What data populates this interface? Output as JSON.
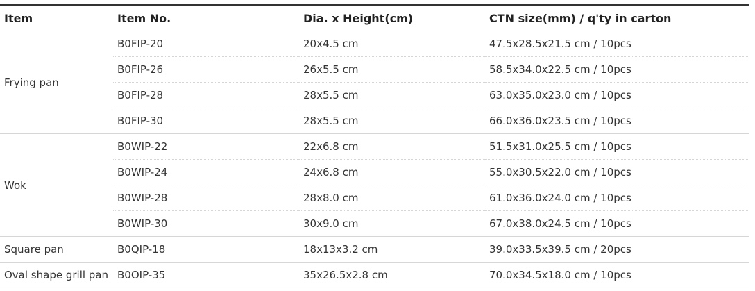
{
  "table": {
    "headers": [
      "Item",
      "Item No.",
      "Dia. x Height(cm)",
      "CTN size(mm) / q'ty in carton"
    ],
    "groups": [
      {
        "item": "Frying pan",
        "rows": [
          [
            "B0FIP-20",
            "20x4.5 cm",
            "47.5x28.5x21.5 cm / 10pcs"
          ],
          [
            "B0FIP-26",
            "26x5.5 cm",
            "58.5x34.0x22.5 cm / 10pcs"
          ],
          [
            "B0FIP-28",
            "28x5.5 cm",
            "63.0x35.0x23.0 cm / 10pcs"
          ],
          [
            "B0FIP-30",
            "28x5.5 cm",
            "66.0x36.0x23.5 cm / 10pcs"
          ]
        ]
      },
      {
        "item": "Wok",
        "rows": [
          [
            "B0WIP-22",
            "22x6.8 cm",
            "51.5x31.0x25.5 cm / 10pcs"
          ],
          [
            "B0WIP-24",
            "24x6.8 cm",
            "55.0x30.5x22.0 cm / 10pcs"
          ],
          [
            "B0WIP-28",
            "28x8.0 cm",
            "61.0x36.0x24.0 cm / 10pcs"
          ],
          [
            "B0WIP-30",
            "30x9.0 cm",
            "67.0x38.0x24.5 cm / 10pcs"
          ]
        ]
      },
      {
        "item": "Square pan",
        "rows": [
          [
            "B0QIP-18",
            "18x13x3.2 cm",
            "39.0x33.5x39.5 cm / 20pcs"
          ]
        ]
      },
      {
        "item": "Oval shape grill pan",
        "rows": [
          [
            "B0OIP-35",
            "35x26.5x2.8 cm",
            "70.0x34.5x18.0 cm / 10pcs"
          ]
        ]
      }
    ]
  }
}
